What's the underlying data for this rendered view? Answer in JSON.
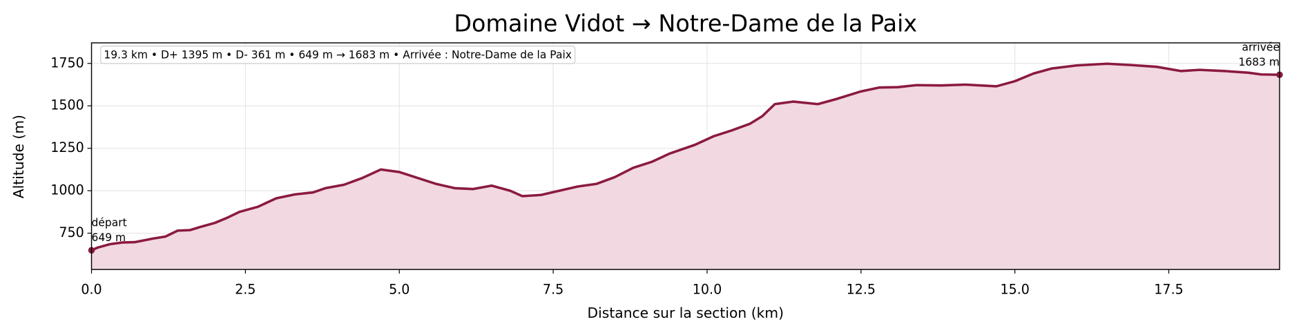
{
  "chart_data": {
    "type": "area-line",
    "title": "Domaine Vidot → Notre-Dame de la Paix",
    "x_label": "Distance sur la section (km)",
    "y_label": "Altitude (m)",
    "info": "19.3 km • D+ 1395 m • D- 361 m • 649 m → 1683 m • Arrivée : Notre-Dame de la Paix",
    "start_label": [
      "départ",
      "649 m"
    ],
    "end_label": [
      "arrivée",
      "1683 m"
    ],
    "x": [
      0,
      0.1,
      0.3,
      0.5,
      0.7,
      1.0,
      1.2,
      1.4,
      1.6,
      1.8,
      2.0,
      2.2,
      2.4,
      2.7,
      3.0,
      3.3,
      3.6,
      3.8,
      4.1,
      4.4,
      4.7,
      5.0,
      5.3,
      5.6,
      5.9,
      6.2,
      6.5,
      6.8,
      7.0,
      7.3,
      7.6,
      7.9,
      8.2,
      8.5,
      8.8,
      9.1,
      9.4,
      9.8,
      10.1,
      10.4,
      10.7,
      10.9,
      11.1,
      11.4,
      11.8,
      12.1,
      12.5,
      12.8,
      13.1,
      13.4,
      13.8,
      14.2,
      14.7,
      15.0,
      15.3,
      15.6,
      16.0,
      16.5,
      16.9,
      17.3,
      17.7,
      18.0,
      18.4,
      18.8,
      19.0,
      19.3
    ],
    "series": [
      {
        "name": "Altitude",
        "color": "#8b1a3f",
        "fill": "#f2d8e0",
        "values": [
          649,
          665,
          685,
          695,
          697,
          718,
          730,
          765,
          768,
          790,
          810,
          840,
          875,
          905,
          955,
          978,
          990,
          1015,
          1035,
          1075,
          1125,
          1110,
          1075,
          1040,
          1015,
          1010,
          1030,
          1000,
          968,
          975,
          1000,
          1025,
          1040,
          1080,
          1135,
          1170,
          1220,
          1270,
          1320,
          1355,
          1395,
          1440,
          1510,
          1525,
          1510,
          1540,
          1585,
          1608,
          1610,
          1622,
          1620,
          1625,
          1615,
          1645,
          1690,
          1720,
          1738,
          1748,
          1740,
          1730,
          1705,
          1712,
          1705,
          1695,
          1685,
          1683
        ]
      }
    ],
    "xlim": [
      0,
      19.3
    ],
    "ylim": [
      536,
      1871
    ],
    "xticks": [
      {
        "value": 0,
        "label": "0.0"
      },
      2.5,
      {
        "value": 5,
        "label": "5.0"
      },
      7.5,
      {
        "value": 10,
        "label": "10.0"
      },
      12.5,
      {
        "value": 15,
        "label": "15.0"
      },
      17.5
    ],
    "yticks": [
      750,
      1000,
      1250,
      1500,
      1750
    ],
    "grid": true
  }
}
